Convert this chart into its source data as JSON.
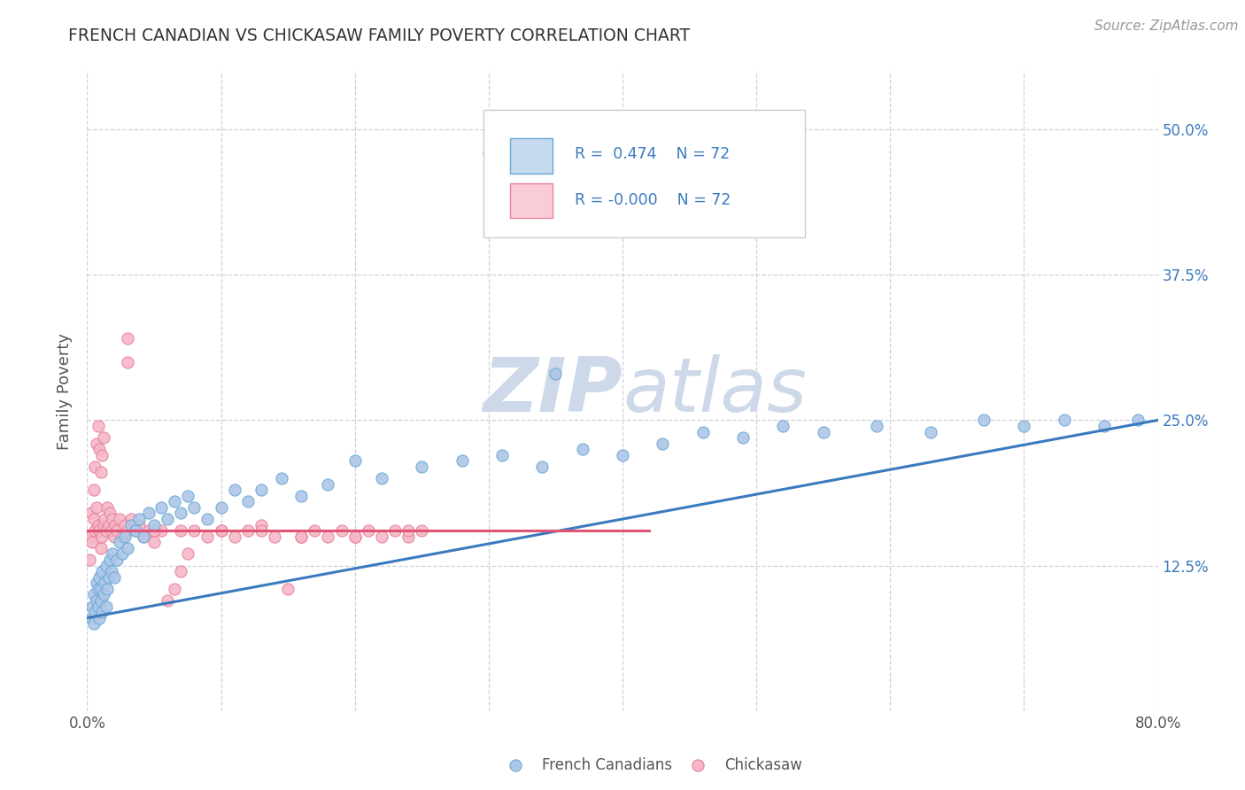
{
  "title": "FRENCH CANADIAN VS CHICKASAW FAMILY POVERTY CORRELATION CHART",
  "source_text": "Source: ZipAtlas.com",
  "ylabel": "Family Poverty",
  "legend_label1": "French Canadians",
  "legend_label2": "Chickasaw",
  "r1": 0.474,
  "r2": -0.0,
  "n1": 72,
  "n2": 72,
  "xlim": [
    0.0,
    0.8
  ],
  "ylim": [
    0.0,
    0.55
  ],
  "xticks": [
    0.0,
    0.1,
    0.2,
    0.3,
    0.4,
    0.5,
    0.6,
    0.7,
    0.8
  ],
  "yticks_right": [
    0.125,
    0.25,
    0.375,
    0.5
  ],
  "ytick_right_labels": [
    "12.5%",
    "25.0%",
    "37.5%",
    "50.0%"
  ],
  "color_blue_fill": "#aec6e8",
  "color_blue_edge": "#6aaad4",
  "color_blue_line": "#3a7abf",
  "color_pink_fill": "#f5b8c8",
  "color_pink_edge": "#e8809a",
  "color_pink_line": "#e05575",
  "color_legend_blue_box": "#c5daf0",
  "color_legend_pink_box": "#f9ccd8",
  "watermark_color": "#cdd8e8",
  "background_color": "#ffffff",
  "grid_color": "#d0d0dc",
  "title_color": "#333333",
  "source_color": "#999999",
  "axis_label_color": "#555555",
  "tick_label_color": "#555555",
  "right_tick_color": "#3a7abf",
  "fc_x": [
    0.003,
    0.004,
    0.005,
    0.005,
    0.006,
    0.007,
    0.007,
    0.008,
    0.008,
    0.009,
    0.009,
    0.01,
    0.01,
    0.011,
    0.011,
    0.012,
    0.013,
    0.014,
    0.014,
    0.015,
    0.016,
    0.017,
    0.018,
    0.019,
    0.02,
    0.022,
    0.024,
    0.026,
    0.028,
    0.03,
    0.033,
    0.036,
    0.039,
    0.042,
    0.046,
    0.05,
    0.055,
    0.06,
    0.065,
    0.07,
    0.075,
    0.08,
    0.09,
    0.1,
    0.11,
    0.12,
    0.13,
    0.145,
    0.16,
    0.18,
    0.2,
    0.22,
    0.25,
    0.28,
    0.31,
    0.34,
    0.37,
    0.4,
    0.43,
    0.46,
    0.49,
    0.52,
    0.55,
    0.59,
    0.63,
    0.67,
    0.7,
    0.73,
    0.76,
    0.785,
    0.3,
    0.35
  ],
  "fc_y": [
    0.08,
    0.09,
    0.075,
    0.1,
    0.085,
    0.095,
    0.11,
    0.09,
    0.105,
    0.08,
    0.115,
    0.095,
    0.105,
    0.085,
    0.12,
    0.1,
    0.11,
    0.09,
    0.125,
    0.105,
    0.115,
    0.13,
    0.12,
    0.135,
    0.115,
    0.13,
    0.145,
    0.135,
    0.15,
    0.14,
    0.16,
    0.155,
    0.165,
    0.15,
    0.17,
    0.16,
    0.175,
    0.165,
    0.18,
    0.17,
    0.185,
    0.175,
    0.165,
    0.175,
    0.19,
    0.18,
    0.19,
    0.2,
    0.185,
    0.195,
    0.215,
    0.2,
    0.21,
    0.215,
    0.22,
    0.21,
    0.225,
    0.22,
    0.23,
    0.24,
    0.235,
    0.245,
    0.24,
    0.245,
    0.24,
    0.25,
    0.245,
    0.25,
    0.245,
    0.25,
    0.48,
    0.29
  ],
  "ck_x": [
    0.002,
    0.003,
    0.003,
    0.004,
    0.005,
    0.005,
    0.006,
    0.006,
    0.007,
    0.007,
    0.008,
    0.008,
    0.009,
    0.009,
    0.01,
    0.01,
    0.011,
    0.011,
    0.012,
    0.012,
    0.013,
    0.014,
    0.015,
    0.016,
    0.017,
    0.018,
    0.019,
    0.02,
    0.021,
    0.022,
    0.024,
    0.026,
    0.028,
    0.03,
    0.033,
    0.036,
    0.039,
    0.042,
    0.046,
    0.05,
    0.055,
    0.06,
    0.065,
    0.07,
    0.075,
    0.08,
    0.09,
    0.1,
    0.11,
    0.12,
    0.13,
    0.14,
    0.15,
    0.16,
    0.17,
    0.18,
    0.19,
    0.2,
    0.21,
    0.22,
    0.23,
    0.24,
    0.25,
    0.03,
    0.05,
    0.07,
    0.1,
    0.13,
    0.16,
    0.2,
    0.24,
    0.03
  ],
  "ck_y": [
    0.13,
    0.15,
    0.17,
    0.145,
    0.165,
    0.19,
    0.155,
    0.21,
    0.175,
    0.23,
    0.16,
    0.245,
    0.155,
    0.225,
    0.14,
    0.205,
    0.15,
    0.22,
    0.16,
    0.235,
    0.165,
    0.155,
    0.175,
    0.16,
    0.17,
    0.155,
    0.165,
    0.15,
    0.16,
    0.155,
    0.165,
    0.15,
    0.16,
    0.155,
    0.165,
    0.155,
    0.16,
    0.15,
    0.155,
    0.145,
    0.155,
    0.095,
    0.105,
    0.12,
    0.135,
    0.155,
    0.15,
    0.155,
    0.15,
    0.155,
    0.16,
    0.15,
    0.105,
    0.15,
    0.155,
    0.15,
    0.155,
    0.15,
    0.155,
    0.15,
    0.155,
    0.15,
    0.155,
    0.3,
    0.155,
    0.155,
    0.155,
    0.155,
    0.15,
    0.15,
    0.155,
    0.32
  ],
  "blue_line_x": [
    0.0,
    0.8
  ],
  "blue_line_y": [
    0.08,
    0.25
  ],
  "pink_line_x": [
    0.0,
    0.42
  ],
  "pink_line_y": [
    0.155,
    0.155
  ]
}
